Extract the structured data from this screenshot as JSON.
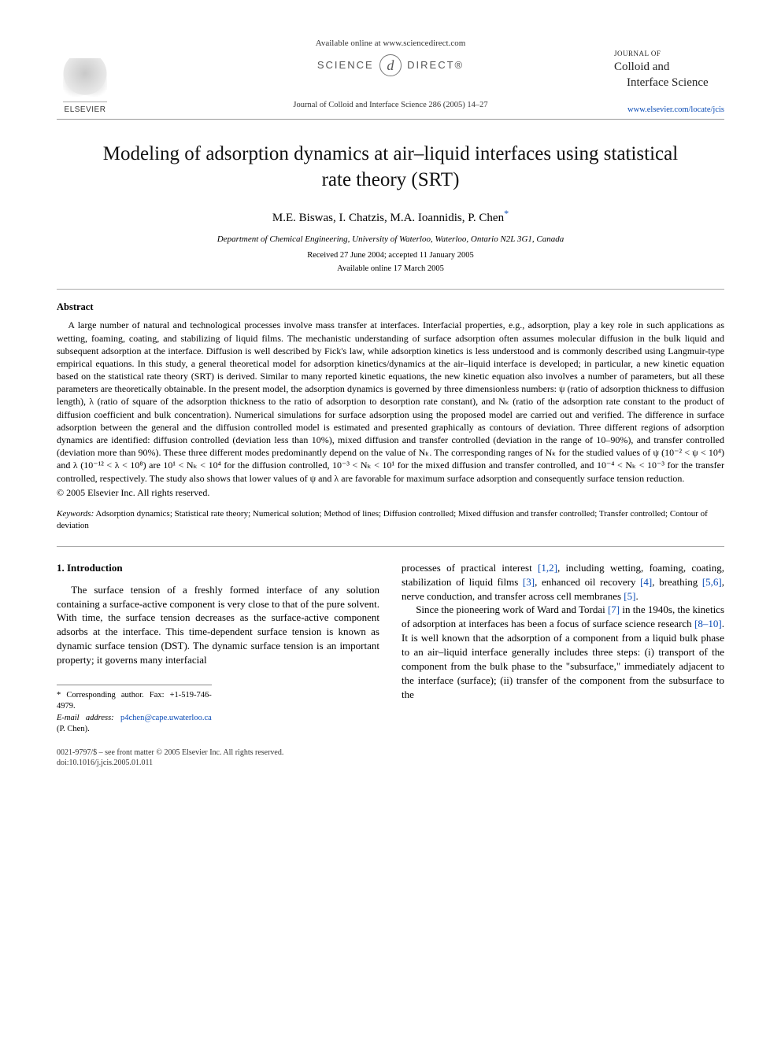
{
  "header": {
    "available_online": "Available online at www.sciencedirect.com",
    "sciencedirect_left": "SCIENCE",
    "sciencedirect_d": "d",
    "sciencedirect_right": "DIRECT®",
    "elsevier": "ELSEVIER",
    "journal_small": "JOURNAL OF",
    "journal_line1": "Colloid and",
    "journal_line2": "Interface Science",
    "citation": "Journal of Colloid and Interface Science 286 (2005) 14–27",
    "journal_url": "www.elsevier.com/locate/jcis"
  },
  "title": "Modeling of adsorption dynamics at air–liquid interfaces using statistical rate theory (SRT)",
  "authors": "M.E. Biswas, I. Chatzis, M.A. Ioannidis, P. Chen",
  "corr_mark": "*",
  "affiliation": "Department of Chemical Engineering, University of Waterloo, Waterloo, Ontario N2L 3G1, Canada",
  "dates_line1": "Received 27 June 2004; accepted 11 January 2005",
  "dates_line2": "Available online 17 March 2005",
  "abstract": {
    "heading": "Abstract",
    "body": "A large number of natural and technological processes involve mass transfer at interfaces. Interfacial properties, e.g., adsorption, play a key role in such applications as wetting, foaming, coating, and stabilizing of liquid films. The mechanistic understanding of surface adsorption often assumes molecular diffusion in the bulk liquid and subsequent adsorption at the interface. Diffusion is well described by Fick's law, while adsorption kinetics is less understood and is commonly described using Langmuir-type empirical equations. In this study, a general theoretical model for adsorption kinetics/dynamics at the air–liquid interface is developed; in particular, a new kinetic equation based on the statistical rate theory (SRT) is derived. Similar to many reported kinetic equations, the new kinetic equation also involves a number of parameters, but all these parameters are theoretically obtainable. In the present model, the adsorption dynamics is governed by three dimensionless numbers: ψ (ratio of adsorption thickness to diffusion length), λ (ratio of square of the adsorption thickness to the ratio of adsorption to desorption rate constant), and Nₖ (ratio of the adsorption rate constant to the product of diffusion coefficient and bulk concentration). Numerical simulations for surface adsorption using the proposed model are carried out and verified. The difference in surface adsorption between the general and the diffusion controlled model is estimated and presented graphically as contours of deviation. Three different regions of adsorption dynamics are identified: diffusion controlled (deviation less than 10%), mixed diffusion and transfer controlled (deviation in the range of 10–90%), and transfer controlled (deviation more than 90%). These three different modes predominantly depend on the value of Nₖ. The corresponding ranges of Nₖ for the studied values of ψ (10⁻² < ψ < 10⁴) and λ (10⁻¹² < λ < 10⁸) are 10¹ < Nₖ < 10⁴ for the diffusion controlled, 10⁻³ < Nₖ < 10¹ for the mixed diffusion and transfer controlled, and 10⁻⁴ < Nₖ < 10⁻³ for the transfer controlled, respectively. The study also shows that lower values of ψ and λ are favorable for maximum surface adsorption and consequently surface tension reduction.",
    "copyright": "© 2005 Elsevier Inc. All rights reserved."
  },
  "keywords": {
    "label": "Keywords:",
    "text": " Adsorption dynamics; Statistical rate theory; Numerical solution; Method of lines; Diffusion controlled; Mixed diffusion and transfer controlled; Transfer controlled; Contour of deviation"
  },
  "section1": {
    "heading": "1. Introduction",
    "col_left": "The surface tension of a freshly formed interface of any solution containing a surface-active component is very close to that of the pure solvent. With time, the surface tension decreases as the surface-active component adsorbs at the interface. This time-dependent surface tension is known as dynamic surface tension (DST). The dynamic surface tension is an important property; it governs many interfacial",
    "col_right_p1a": "processes of practical interest ",
    "col_right_cite1": "[1,2]",
    "col_right_p1b": ", including wetting, foaming, coating, stabilization of liquid films ",
    "col_right_cite2": "[3]",
    "col_right_p1c": ", enhanced oil recovery ",
    "col_right_cite3": "[4]",
    "col_right_p1d": ", breathing ",
    "col_right_cite4": "[5,6]",
    "col_right_p1e": ", nerve conduction, and transfer across cell membranes ",
    "col_right_cite5": "[5]",
    "col_right_p1f": ".",
    "col_right_p2a": "Since the pioneering work of Ward and Tordai ",
    "col_right_cite6": "[7]",
    "col_right_p2b": " in the 1940s, the kinetics of adsorption at interfaces has been a focus of surface science research ",
    "col_right_cite7": "[8–10]",
    "col_right_p2c": ". It is well known that the adsorption of a component from a liquid bulk phase to an air–liquid interface generally includes three steps: (i) transport of the component from the bulk phase to the \"subsurface,\" immediately adjacent to the interface (surface); (ii) transfer of the component from the subsurface to the"
  },
  "footnotes": {
    "corr": "* Corresponding author. Fax: +1-519-746-4979.",
    "email_label": "E-mail address:",
    "email": "p4chen@cape.uwaterloo.ca",
    "email_who": " (P. Chen)."
  },
  "bottom": {
    "line1": "0021-9797/$ – see front matter © 2005 Elsevier Inc. All rights reserved.",
    "line2": "doi:10.1016/j.jcis.2005.01.011"
  },
  "colors": {
    "link": "#0a4bb5",
    "text": "#000000",
    "rule": "#999999"
  }
}
